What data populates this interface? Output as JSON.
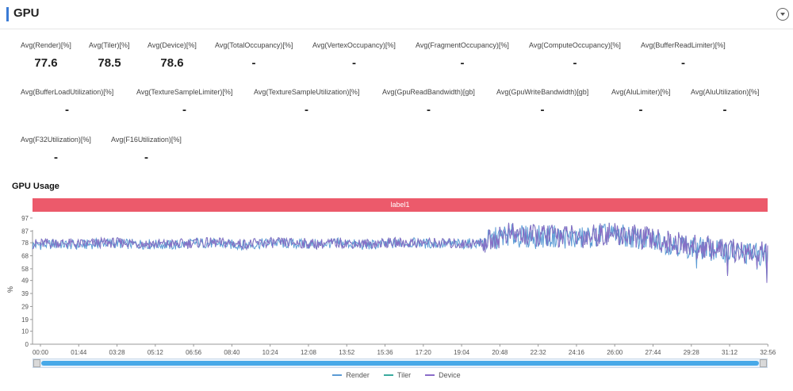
{
  "header": {
    "title": "GPU"
  },
  "metrics": [
    {
      "label": "Avg(Render)[%]",
      "value": "77.6"
    },
    {
      "label": "Avg(Tiler)[%]",
      "value": "78.5"
    },
    {
      "label": "Avg(Device)[%]",
      "value": "78.6"
    },
    {
      "label": "Avg(TotalOccupancy)[%]",
      "value": "-"
    },
    {
      "label": "Avg(VertexOccupancy)[%]",
      "value": "-"
    },
    {
      "label": "Avg(FragmentOccupancy)[%]",
      "value": "-"
    },
    {
      "label": "Avg(ComputeOccupancy)[%]",
      "value": "-"
    },
    {
      "label": "Avg(BufferReadLimiter)[%]",
      "value": "-"
    },
    {
      "label": "Avg(BufferLoadUtilization)[%]",
      "value": "-"
    },
    {
      "label": "Avg(TextureSampleLimiter)[%]",
      "value": "-"
    },
    {
      "label": "Avg(TextureSampleUtilization)[%]",
      "value": "-"
    },
    {
      "label": "Avg(GpuReadBandwidth)[gb]",
      "value": "-"
    },
    {
      "label": "Avg(GpuWriteBandwidth)[gb]",
      "value": "-"
    },
    {
      "label": "Avg(AluLimiter)[%]",
      "value": "-"
    },
    {
      "label": "Avg(AluUtilization)[%]",
      "value": "-"
    },
    {
      "label": "Avg(F32Utilization)[%]",
      "value": "-"
    },
    {
      "label": "Avg(F16Utilization)[%]",
      "value": "-"
    }
  ],
  "usage": {
    "title": "GPU Usage",
    "band_label": "label1"
  },
  "chart_data": {
    "type": "line",
    "ylabel": "%",
    "ylim": [
      0,
      100
    ],
    "yticks": [
      0,
      10,
      19,
      29,
      39,
      49,
      58,
      68,
      78,
      87,
      97
    ],
    "xticks": [
      "00:00",
      "01:44",
      "03:28",
      "05:12",
      "06:56",
      "08:40",
      "10:24",
      "12:08",
      "13:52",
      "15:36",
      "17:20",
      "19:04",
      "20:48",
      "22:32",
      "24:16",
      "26:00",
      "27:44",
      "29:28",
      "31:12",
      "32:56"
    ],
    "x_range_seconds": [
      0,
      2040
    ],
    "grid": false,
    "legend_position": "bottom-center",
    "series": [
      {
        "name": "Render",
        "color": "#5b9bd5",
        "values": [
          76,
          77,
          76,
          78,
          77,
          77,
          76,
          78,
          77,
          76,
          78,
          77,
          77,
          78,
          76,
          77,
          78,
          77,
          77,
          78,
          84,
          82,
          83,
          81,
          84,
          83,
          80,
          77,
          74,
          72,
          70,
          69
        ]
      },
      {
        "name": "Tiler",
        "color": "#3aaa9e",
        "values": [
          77,
          78,
          77,
          78,
          78,
          77,
          77,
          78,
          78,
          77,
          78,
          78,
          77,
          78,
          77,
          78,
          78,
          78,
          77,
          78,
          85,
          83,
          84,
          82,
          85,
          84,
          81,
          78,
          75,
          73,
          71,
          70
        ]
      },
      {
        "name": "Device",
        "color": "#8a6cc8",
        "values": [
          77,
          78,
          77,
          78,
          78,
          77,
          77,
          78,
          78,
          77,
          78,
          78,
          77,
          78,
          77,
          78,
          78,
          78,
          77,
          78,
          85,
          83,
          84,
          82,
          85,
          84,
          81,
          78,
          75,
          73,
          71,
          70
        ]
      }
    ]
  }
}
